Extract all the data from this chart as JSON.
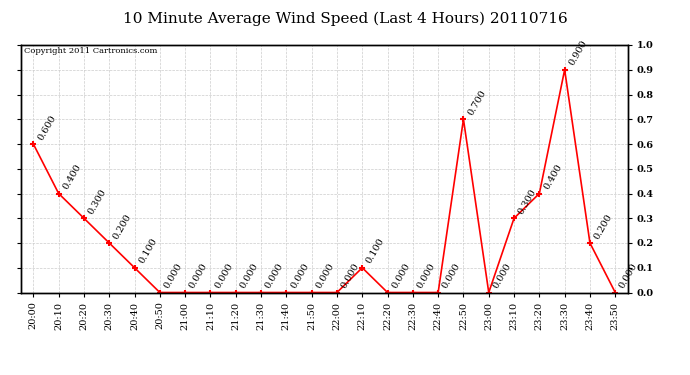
{
  "title": "10 Minute Average Wind Speed (Last 4 Hours) 20110716",
  "copyright": "Copyright 2011 Cartronics.com",
  "x_labels": [
    "20:00",
    "20:10",
    "20:20",
    "20:30",
    "20:40",
    "20:50",
    "21:00",
    "21:10",
    "21:20",
    "21:30",
    "21:40",
    "21:50",
    "22:00",
    "22:10",
    "22:20",
    "22:30",
    "22:40",
    "22:50",
    "23:00",
    "23:10",
    "23:20",
    "23:30",
    "23:40",
    "23:50"
  ],
  "y_values": [
    0.6,
    0.4,
    0.3,
    0.2,
    0.1,
    0.0,
    0.0,
    0.0,
    0.0,
    0.0,
    0.0,
    0.0,
    0.0,
    0.1,
    0.0,
    0.0,
    0.0,
    0.7,
    0.0,
    0.3,
    0.4,
    0.9,
    0.2,
    0.0
  ],
  "line_color": "#ff0000",
  "marker_color": "#ff0000",
  "background_color": "#ffffff",
  "grid_color": "#cccccc",
  "title_fontsize": 11,
  "label_fontsize": 7,
  "annotation_fontsize": 7,
  "ylim": [
    0.0,
    1.0
  ],
  "yticks": [
    0.0,
    0.1,
    0.2,
    0.3,
    0.4,
    0.5,
    0.6,
    0.7,
    0.8,
    0.9,
    1.0
  ]
}
